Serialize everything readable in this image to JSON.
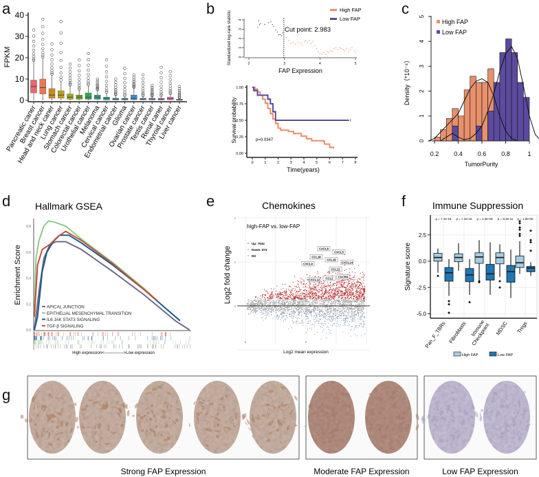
{
  "panel_labels": {
    "a": "a",
    "b": "b",
    "c": "c",
    "d": "d",
    "e": "e",
    "f": "f",
    "g": "g"
  },
  "chart_data": [
    {
      "panel": "a",
      "type": "box",
      "ylabel": "FPKM",
      "ylim": [
        0,
        40
      ],
      "yticks": [
        "0",
        "10",
        "20",
        "30",
        "40"
      ],
      "categories": [
        "Pancreatic caner",
        "Breast cancer",
        "Head and neck caner",
        "Lung cancer",
        "Stomach cancer",
        "Colorectal cancer",
        "Urothelial cancer",
        "Melanoma",
        "Cervical cancer",
        "Endometrial cancer",
        "Glioma",
        "Ovarian cancer",
        "Prostate cancer",
        "Testis cancer",
        "Renal caner",
        "Thyroid cancer",
        "Liver cancer"
      ],
      "q1": [
        3.5,
        3.0,
        1.0,
        1.0,
        0.5,
        0.5,
        0.5,
        0.5,
        0.2,
        0.2,
        0.2,
        0.3,
        0.2,
        0.2,
        0.2,
        0.3,
        0.1
      ],
      "median": [
        6.5,
        6.0,
        2.5,
        2.5,
        1.5,
        1.5,
        1.5,
        1.5,
        1.0,
        0.6,
        0.6,
        1.0,
        0.6,
        0.6,
        0.5,
        0.7,
        0.3
      ],
      "q3": [
        9.5,
        10.0,
        5.5,
        4.5,
        3.0,
        2.5,
        3.5,
        2.5,
        1.5,
        1.0,
        1.0,
        2.5,
        1.0,
        1.0,
        1.0,
        1.5,
        0.5
      ],
      "whisker_high": [
        18.5,
        20,
        12,
        9,
        7,
        5,
        7,
        5,
        3.5,
        2.5,
        2,
        6,
        2,
        2,
        2,
        3,
        1
      ],
      "max_outlier": [
        33,
        38,
        26.5,
        37,
        17,
        19,
        22,
        10,
        19,
        10,
        15,
        12,
        12,
        7,
        15.5,
        13.5,
        6.5
      ],
      "colors": [
        "#e8686a",
        "#e87a52",
        "#d08a1a",
        "#c19e18",
        "#a5a418",
        "#77a71e",
        "#2ea84e",
        "#21a882",
        "#22a8a2",
        "#22a1ba",
        "#2b96cc",
        "#3d8cd8",
        "#7a80e0",
        "#a072de",
        "#c866d0",
        "#e061b2",
        "#e9698f"
      ]
    },
    {
      "panel": "b-top",
      "type": "scatter",
      "xlabel": "FAP Expression",
      "ylabel": "Standardized log-rank statistic",
      "xlim": [
        2,
        5
      ],
      "ylim": [
        0,
        4
      ],
      "xticks": [
        "2",
        "3",
        "4",
        "5"
      ],
      "yticks": [
        "0",
        "1",
        "2",
        "3",
        "4"
      ],
      "cut_point": 2.983,
      "annotation": "Cut point: 2.983",
      "legend": [
        "High FAP",
        "Low FAP"
      ],
      "colors": {
        "high": "#e8906c",
        "low": "#5b4a9e",
        "below_cut": "#555555"
      },
      "points": [
        [
          2.25,
          3.2
        ],
        [
          2.28,
          3.9
        ],
        [
          2.3,
          3.5
        ],
        [
          2.33,
          3.6
        ],
        [
          2.45,
          3.5
        ],
        [
          2.55,
          3.7
        ],
        [
          2.62,
          3.8
        ],
        [
          2.66,
          3.5
        ],
        [
          2.7,
          3.3
        ],
        [
          2.75,
          2.9
        ],
        [
          2.8,
          2.7
        ],
        [
          2.84,
          2.4
        ],
        [
          2.88,
          2.4
        ],
        [
          2.92,
          2.3
        ],
        [
          2.95,
          2.6
        ],
        [
          3.05,
          2.1
        ],
        [
          3.12,
          1.8
        ],
        [
          3.18,
          1.5
        ],
        [
          3.25,
          1.6
        ],
        [
          3.3,
          1.4
        ],
        [
          3.38,
          1.6
        ],
        [
          3.45,
          1.5
        ],
        [
          3.5,
          1.3
        ],
        [
          3.56,
          1.7
        ],
        [
          3.6,
          1.8
        ],
        [
          3.65,
          1.6
        ],
        [
          3.7,
          1.8
        ],
        [
          3.75,
          1.5
        ],
        [
          3.8,
          1.7
        ],
        [
          3.85,
          1.2
        ],
        [
          3.9,
          0.9
        ],
        [
          3.95,
          0.6
        ],
        [
          4.0,
          0.4
        ],
        [
          4.05,
          0.3
        ],
        [
          4.1,
          0.5
        ],
        [
          4.15,
          0.3
        ],
        [
          4.2,
          0.6
        ],
        [
          4.25,
          0.5
        ],
        [
          4.3,
          0.7
        ],
        [
          4.35,
          0.6
        ],
        [
          4.4,
          0.9
        ],
        [
          4.45,
          1.0
        ],
        [
          4.5,
          0.8
        ],
        [
          4.55,
          1.0
        ],
        [
          4.6,
          0.9
        ],
        [
          4.65,
          0.8
        ],
        [
          4.7,
          0.7
        ],
        [
          4.75,
          0.9
        ],
        [
          4.8,
          0.6
        ],
        [
          4.85,
          0.8
        ],
        [
          4.9,
          1.0
        ],
        [
          4.95,
          0.7
        ],
        [
          5.0,
          0.5
        ]
      ]
    },
    {
      "panel": "b-bottom",
      "type": "line",
      "xlabel": "Time(years)",
      "ylabel": "Survival probability",
      "xlim": [
        0,
        8
      ],
      "ylim": [
        0,
        1
      ],
      "xticks": [
        "0",
        "1",
        "2",
        "3",
        "4",
        "5",
        "6",
        "7",
        "8"
      ],
      "yticks": [
        "0.00",
        "0.25",
        "0.50",
        "0.75",
        "1.00"
      ],
      "pvalue": "p=0.0347",
      "series": [
        {
          "name": "High FAP",
          "color": "#e8906c",
          "steps": [
            [
              0,
              1
            ],
            [
              0.2,
              0.97
            ],
            [
              0.4,
              0.93
            ],
            [
              0.6,
              0.88
            ],
            [
              0.8,
              0.82
            ],
            [
              1.0,
              0.76
            ],
            [
              1.2,
              0.68
            ],
            [
              1.4,
              0.6
            ],
            [
              1.6,
              0.52
            ],
            [
              1.8,
              0.45
            ],
            [
              2.0,
              0.38
            ],
            [
              2.2,
              0.35
            ],
            [
              2.8,
              0.33
            ],
            [
              3.2,
              0.3
            ],
            [
              3.8,
              0.26
            ],
            [
              4.2,
              0.22
            ],
            [
              4.6,
              0.19
            ],
            [
              5.5,
              0.18
            ],
            [
              5.6,
              0.14
            ],
            [
              6.0,
              0.09
            ],
            [
              6.3,
              0.07
            ]
          ]
        },
        {
          "name": "Low FAP",
          "color": "#5b4a9e",
          "steps": [
            [
              0,
              1
            ],
            [
              0.1,
              0.95
            ],
            [
              0.4,
              0.88
            ],
            [
              1.2,
              0.82
            ],
            [
              1.4,
              0.75
            ],
            [
              1.6,
              0.63
            ],
            [
              1.8,
              0.5
            ],
            [
              7.5,
              0.5
            ]
          ]
        }
      ]
    },
    {
      "panel": "c",
      "type": "bar",
      "subtype": "histogram",
      "xlabel": "TumorPurity",
      "ylabel": "Density（*10⁻⁴）",
      "xlim": [
        0.2,
        1.0
      ],
      "ylim": [
        0,
        5
      ],
      "xticks": [
        "0.2",
        "0.4",
        "0.6",
        "0.8",
        "1"
      ],
      "yticks": [
        "0",
        "1",
        "2",
        "3",
        "4",
        "5"
      ],
      "bin_start": 0.2,
      "bin_width": 0.05,
      "series": [
        {
          "name": "High FAP",
          "color": "#e8906c",
          "values": [
            0.15,
            0.45,
            0.9,
            1.3,
            1.0,
            2.05,
            2.6,
            2.35,
            2.35,
            2.9,
            0,
            0,
            0,
            0,
            0,
            0
          ],
          "density": [
            [
              0.15,
              0
            ],
            [
              0.2,
              0.1
            ],
            [
              0.3,
              0.6
            ],
            [
              0.35,
              0.85
            ],
            [
              0.4,
              1.1
            ],
            [
              0.45,
              1.6
            ],
            [
              0.5,
              2.1
            ],
            [
              0.55,
              2.4
            ],
            [
              0.6,
              2.5
            ],
            [
              0.65,
              2.35
            ],
            [
              0.7,
              1.8
            ],
            [
              0.75,
              1.0
            ],
            [
              0.8,
              0.4
            ],
            [
              0.85,
              0.1
            ],
            [
              0.9,
              0
            ]
          ]
        },
        {
          "name": "Low FAP",
          "color": "#5b4a9e",
          "values": [
            0,
            0,
            0,
            0.6,
            0,
            0,
            0,
            0.6,
            0,
            1.2,
            2.35,
            3.55,
            4.1,
            3.55,
            2.35,
            1.75
          ],
          "density": [
            [
              0.25,
              0
            ],
            [
              0.3,
              0.15
            ],
            [
              0.35,
              0.3
            ],
            [
              0.4,
              0.15
            ],
            [
              0.45,
              0.05
            ],
            [
              0.5,
              0.1
            ],
            [
              0.55,
              0.3
            ],
            [
              0.6,
              0.6
            ],
            [
              0.65,
              1.2
            ],
            [
              0.7,
              1.9
            ],
            [
              0.75,
              2.8
            ],
            [
              0.8,
              3.5
            ],
            [
              0.85,
              3.8
            ],
            [
              0.9,
              3.3
            ],
            [
              0.95,
              2.2
            ],
            [
              1.0,
              1.0
            ],
            [
              1.05,
              0.25
            ],
            [
              1.1,
              0
            ]
          ]
        }
      ]
    },
    {
      "panel": "d",
      "type": "line",
      "title": "Hallmark GSEA",
      "ylabel": "Enrichment Score",
      "xlabel": "High expression<-------------->Low expression",
      "ylim": [
        0,
        0.8
      ],
      "yticks": [
        "0.0",
        "0.2",
        "0.4",
        "0.6",
        "0.8"
      ],
      "series": [
        {
          "name": "APICAL JUNCTION",
          "color": "#6e6a86",
          "points": [
            [
              0,
              0
            ],
            [
              0.03,
              0.3
            ],
            [
              0.06,
              0.55
            ],
            [
              0.1,
              0.66
            ],
            [
              0.14,
              0.68
            ],
            [
              0.2,
              0.68
            ],
            [
              0.3,
              0.62
            ],
            [
              0.5,
              0.45
            ],
            [
              0.7,
              0.27
            ],
            [
              0.9,
              0.07
            ],
            [
              0.99,
              0
            ]
          ]
        },
        {
          "name": "EPITHELIAL MESENCHYMAL TRANSITION",
          "color": "#8fc98a",
          "points": [
            [
              0,
              0.1
            ],
            [
              0.01,
              0.55
            ],
            [
              0.03,
              0.69
            ],
            [
              0.06,
              0.8
            ],
            [
              0.09,
              0.84
            ],
            [
              0.13,
              0.83
            ],
            [
              0.2,
              0.8
            ],
            [
              0.3,
              0.7
            ],
            [
              0.5,
              0.52
            ],
            [
              0.7,
              0.32
            ],
            [
              0.77,
              0.24
            ]
          ]
        },
        {
          "name": "IL6 JAK STAT3 SIGNALING",
          "color": "#1f5a8a",
          "points": [
            [
              0,
              0
            ],
            [
              0.02,
              0.1
            ],
            [
              0.05,
              0.45
            ],
            [
              0.08,
              0.6
            ],
            [
              0.12,
              0.68
            ],
            [
              0.16,
              0.73
            ],
            [
              0.22,
              0.73
            ],
            [
              0.3,
              0.67
            ],
            [
              0.5,
              0.5
            ],
            [
              0.7,
              0.31
            ],
            [
              0.93,
              0.07
            ]
          ]
        },
        {
          "name": "TGF-β SIGNALING",
          "color": "#c0503a",
          "points": [
            [
              0,
              0.1
            ],
            [
              0.02,
              0.5
            ],
            [
              0.05,
              0.62
            ],
            [
              0.1,
              0.66
            ],
            [
              0.15,
              0.72
            ],
            [
              0.2,
              0.76
            ],
            [
              0.3,
              0.69
            ],
            [
              0.5,
              0.51
            ],
            [
              0.7,
              0.31
            ],
            [
              0.78,
              0.23
            ]
          ]
        }
      ]
    },
    {
      "panel": "e",
      "type": "scatter",
      "title": "Chemokines",
      "subtitle": "high-FAP vs. low-FAP",
      "xlabel": "Log2 mean expression",
      "ylabel": "Log2 fold change",
      "xticks": [
        "0",
        "2"
      ],
      "yticks": [
        "0",
        "2",
        "4"
      ],
      "legend": [
        {
          "label": "Up: 7634",
          "color": "#b22222"
        },
        {
          "label": "Down: 874",
          "color": "#5b7fa8"
        },
        {
          "label": "NS",
          "color": "#999999"
        }
      ],
      "genes": [
        "CXCL8",
        "CXCL5",
        "CCL18",
        "CCL19",
        "CXCL14",
        "CXCL9",
        "CCL21",
        "CXCR4",
        "CXCL12",
        "CCL2"
      ]
    },
    {
      "panel": "f",
      "type": "box",
      "title": "Immune Suppression",
      "ylabel": "Signature score",
      "yticks": [
        "2.5",
        "0.0",
        "-2.5",
        "-5.0"
      ],
      "categories": [
        "Pan_F_TBRs",
        "Fibroblasts",
        "Immune Checkpoint",
        "MDSC",
        "Tregs"
      ],
      "pvalues": [
        "p = < 2e-16",
        "p = < 2e-16",
        "p = 1.3e-09",
        "p = 8.3e-11",
        "p = 1.8e-05"
      ],
      "legend": [
        "High FAP",
        "Low FAP"
      ],
      "colors": {
        "high": "#a6cde3",
        "low": "#1f78b4"
      },
      "high": [
        {
          "q1": 0,
          "median": 0.35,
          "q3": 0.75,
          "lo": -1.1,
          "hi": 1.2,
          "outliers": [
            -1.4
          ]
        },
        {
          "q1": -0.05,
          "median": 0.35,
          "q3": 0.7,
          "lo": -0.9,
          "hi": 1.7,
          "outliers": []
        },
        {
          "q1": -0.2,
          "median": 0.4,
          "q3": 0.8,
          "lo": -1.8,
          "hi": 2.0,
          "outliers": [
            -1.9,
            -2.0
          ]
        },
        {
          "q1": -0.25,
          "median": 0.35,
          "q3": 0.8,
          "lo": -1.5,
          "hi": 1.6,
          "outliers": [
            -1.9,
            -2.5
          ]
        },
        {
          "q1": -0.6,
          "median": -0.15,
          "q3": 0.5,
          "lo": -1.2,
          "hi": 1.9,
          "outliers": [
            2.4,
            2.6,
            3.0,
            3.2,
            3.6,
            3.8
          ]
        }
      ],
      "low": [
        {
          "q1": -1.9,
          "median": -1.1,
          "q3": -0.6,
          "lo": -3.3,
          "hi": 0.2,
          "outliers": [
            -3.8,
            -4.1,
            -4.9
          ]
        },
        {
          "q1": -1.95,
          "median": -1.3,
          "q3": -0.7,
          "lo": -3.2,
          "hi": 0.2,
          "outliers": [
            -3.9
          ]
        },
        {
          "q1": -1.8,
          "median": -1.2,
          "q3": -0.3,
          "lo": -3.2,
          "hi": 1.8,
          "outliers": []
        },
        {
          "q1": -2.0,
          "median": -1.0,
          "q3": -0.4,
          "lo": -3.5,
          "hi": 1.1,
          "outliers": []
        },
        {
          "q1": -1.0,
          "median": -0.65,
          "q3": -0.5,
          "lo": -1.4,
          "hi": -0.1,
          "outliers": [
            1.0,
            1.8,
            2.0,
            2.9
          ]
        }
      ]
    }
  ],
  "panel_g": {
    "groups": [
      {
        "caption": "Strong FAP Expression",
        "cores": 5,
        "stain": "#a8785a"
      },
      {
        "caption": "Moderate FAP Expression",
        "cores": 2,
        "stain": "#a07a6a"
      },
      {
        "caption": "Low FAP Expression",
        "cores": 2,
        "stain": "#a49ac0"
      }
    ]
  }
}
